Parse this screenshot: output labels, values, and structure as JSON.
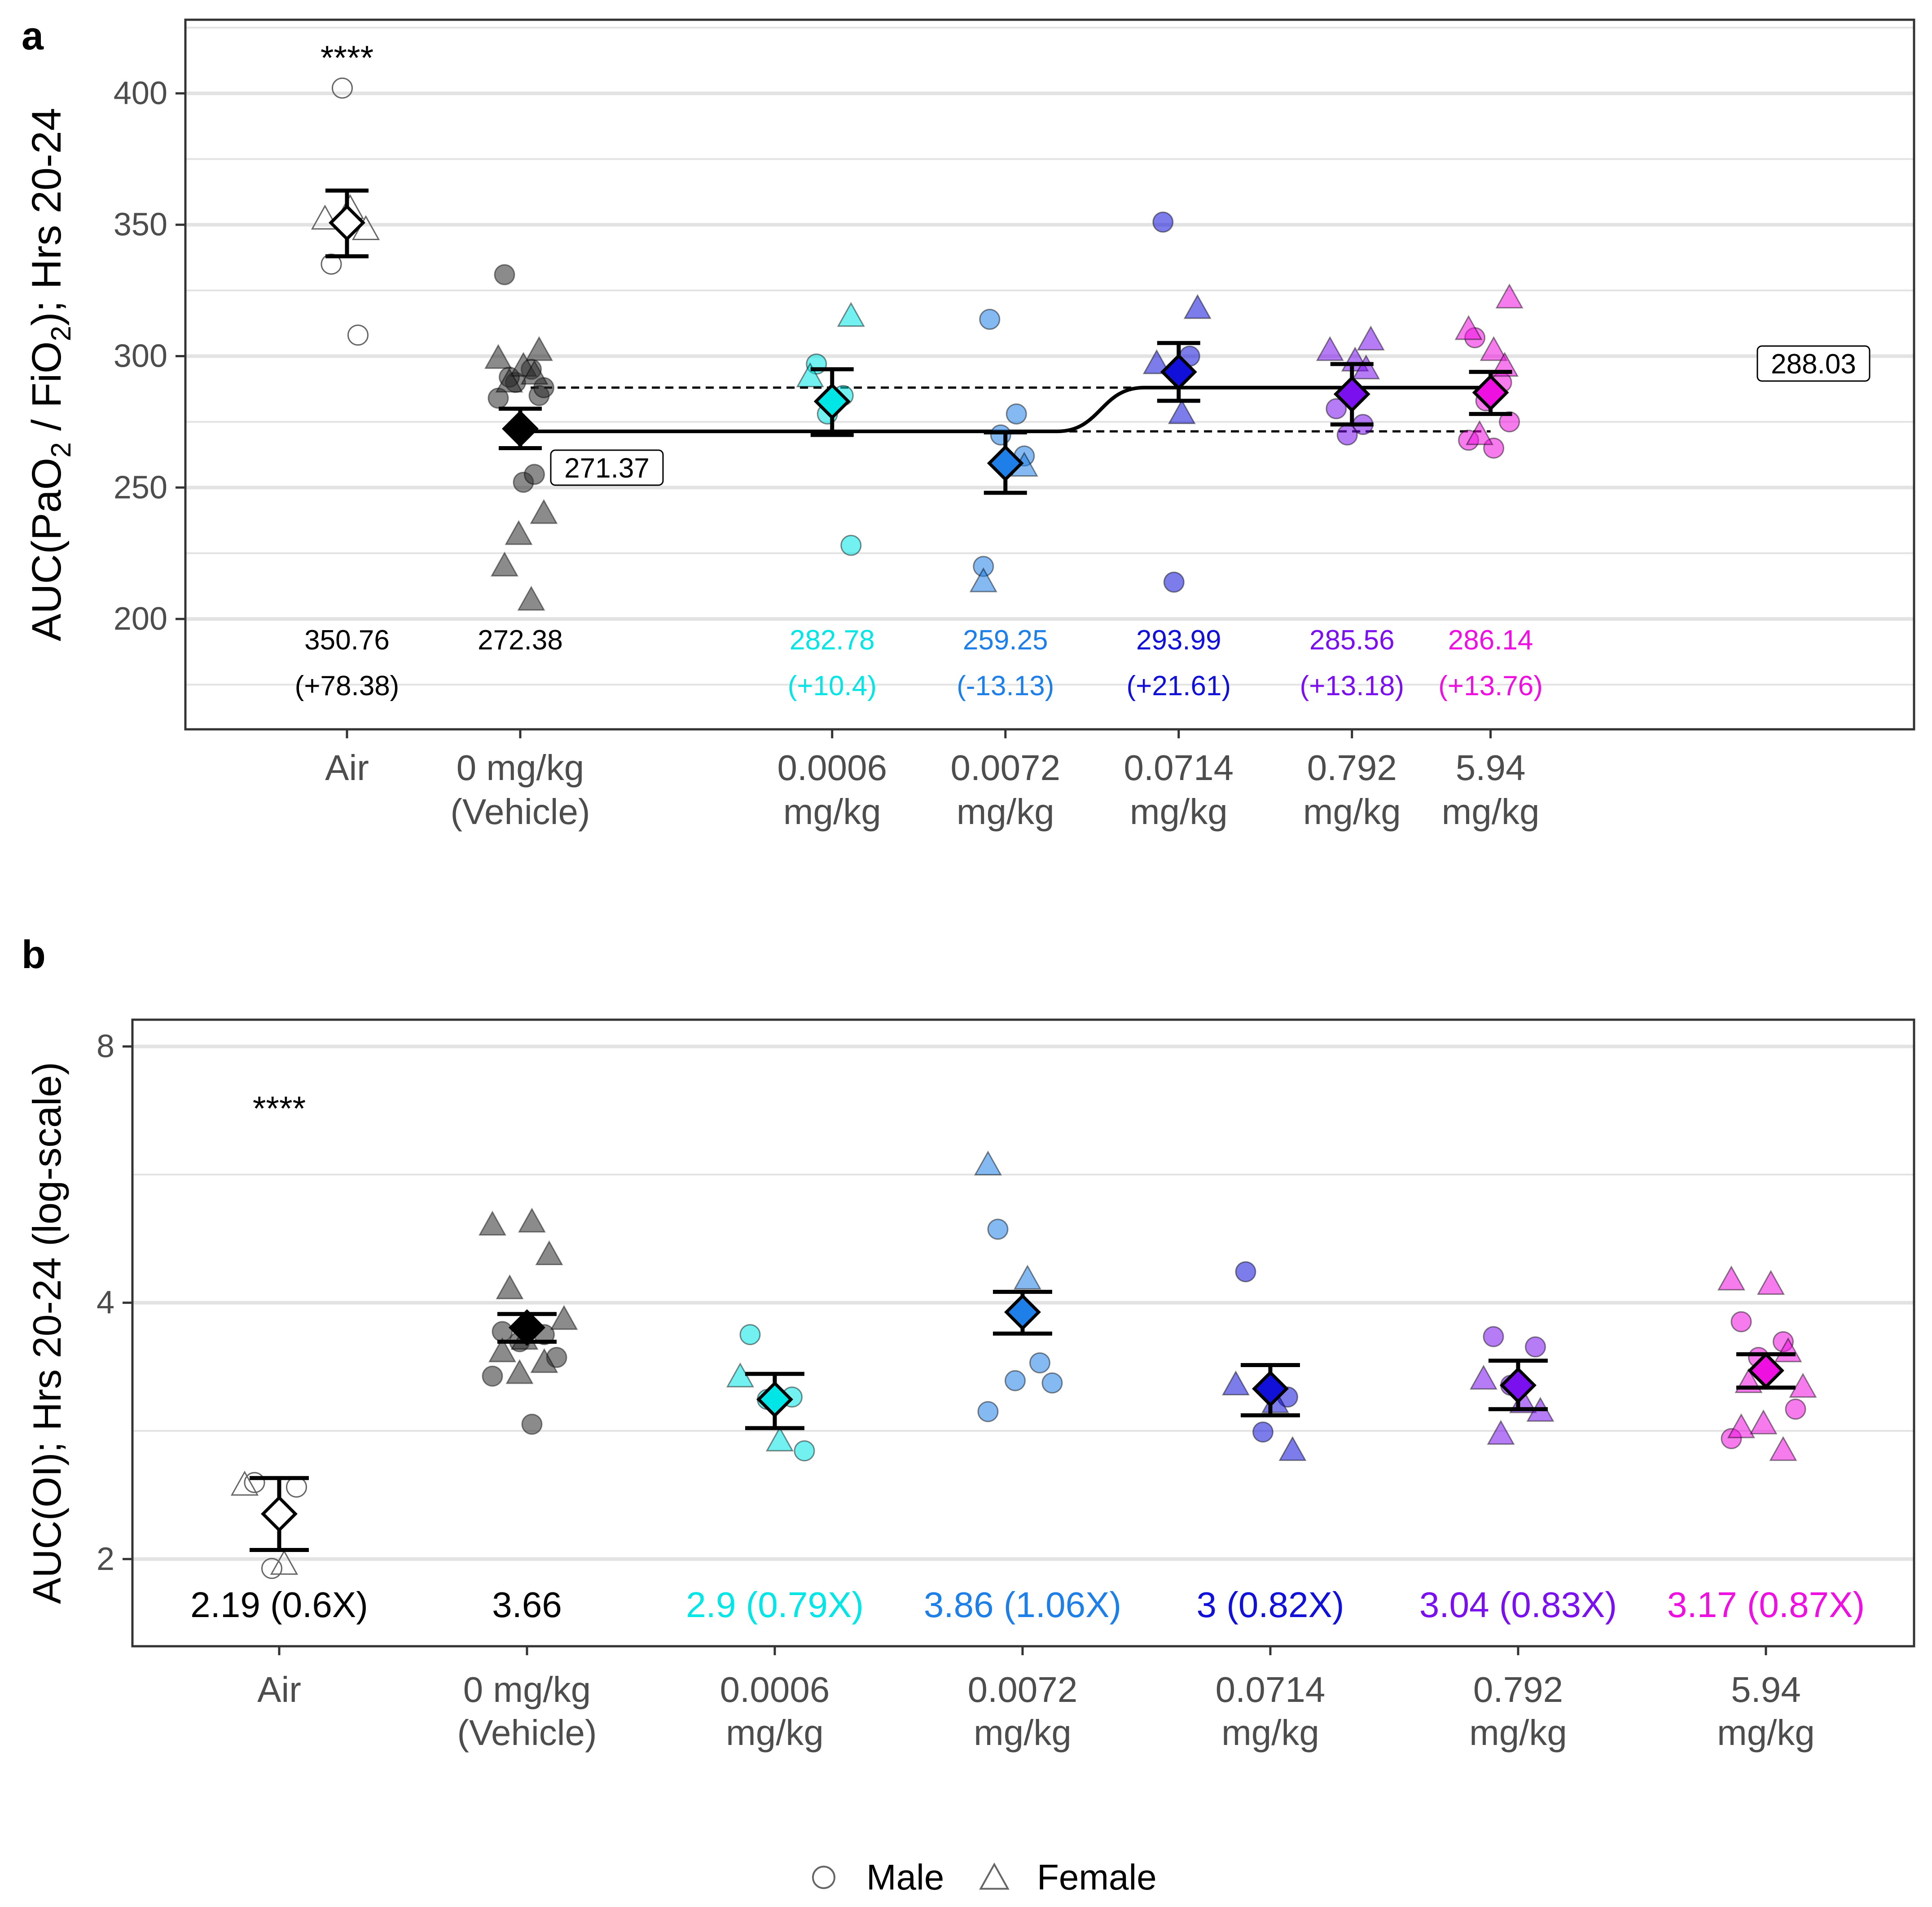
{
  "legend": {
    "items": [
      {
        "label": "Male",
        "shape": "circle"
      },
      {
        "label": "Female",
        "shape": "triangle"
      }
    ]
  },
  "colors": {
    "Air": "#ffffff",
    "Vehicle": "#2b2b2b",
    "0.0006": "#00f0f0",
    "0.0072": "#1f7fe8",
    "0.0714": "#1010d8",
    "0.792": "#7a10ee",
    "5.94": "#ee10e0"
  },
  "chart_data": [
    {
      "panel": "a",
      "type": "scatter",
      "ylabel_parts": {
        "pre": "AUC(PaO",
        "sub1": "2",
        "mid": " / FiO",
        "sub2": "2",
        "post": "); Hrs 20-24"
      },
      "ylim": [
        158,
        428
      ],
      "yticks": [
        200,
        250,
        300,
        350,
        400
      ],
      "groups": [
        {
          "key": "Air",
          "label1": "Air",
          "label2": "",
          "pos": 0,
          "mean": 350.76,
          "ci": [
            338,
            363
          ],
          "value_text": "350.76",
          "delta_text": "(+78.38)",
          "color": "#000000",
          "hollow": true,
          "male": [
            335,
            308,
            402
          ],
          "female": [
            348,
            352,
            356
          ]
        },
        {
          "key": "Vehicle",
          "label1": "0 mg/kg",
          "label2": "(Vehicle)",
          "pos": 1,
          "mean": 272.38,
          "ci": [
            265,
            280
          ],
          "value_text": "272.38",
          "delta_text": "",
          "color": "#000000",
          "hollow": false,
          "male": [
            331,
            295,
            290,
            285,
            284,
            252,
            255,
            292,
            288
          ],
          "female": [
            302,
            299,
            296,
            293,
            290,
            240,
            232,
            220,
            207
          ]
        },
        {
          "key": "0.0006",
          "label1": "0.0006",
          "label2": "mg/kg",
          "pos": 2.8,
          "mean": 282.78,
          "ci": [
            270,
            295
          ],
          "value_text": "282.78",
          "delta_text": "(+10.4)",
          "color": "#00e6e6",
          "hollow": false,
          "male": [
            297,
            285,
            278,
            228
          ],
          "female": [
            315,
            292
          ]
        },
        {
          "key": "0.0072",
          "label1": "0.0072",
          "label2": "mg/kg",
          "pos": 3.8,
          "mean": 259.25,
          "ci": [
            248,
            271
          ],
          "value_text": "259.25",
          "delta_text": "(-13.13)",
          "color": "#1f7fe8",
          "hollow": false,
          "male": [
            314,
            278,
            270,
            262,
            220
          ],
          "female": [
            258,
            214
          ]
        },
        {
          "key": "0.0714",
          "label1": "0.0714",
          "label2": "mg/kg",
          "pos": 4.8,
          "mean": 293.99,
          "ci": [
            283,
            305
          ],
          "value_text": "293.99",
          "delta_text": "(+21.61)",
          "color": "#1010d8",
          "hollow": false,
          "male": [
            351,
            300,
            214
          ],
          "female": [
            318,
            297,
            278
          ]
        },
        {
          "key": "0.792",
          "label1": "0.792",
          "label2": "mg/kg",
          "pos": 5.8,
          "mean": 285.56,
          "ci": [
            274,
            297
          ],
          "value_text": "285.56",
          "delta_text": "(+13.18)",
          "color": "#7a10ee",
          "hollow": false,
          "male": [
            280,
            274,
            270
          ],
          "female": [
            306,
            302,
            298,
            295
          ]
        },
        {
          "key": "5.94",
          "label1": "5.94",
          "label2": "mg/kg",
          "pos": 6.6,
          "mean": 286.14,
          "ci": [
            278,
            294
          ],
          "value_text": "286.14",
          "delta_text": "(+13.76)",
          "color": "#ee10e0",
          "hollow": false,
          "male": [
            307,
            290,
            283,
            275,
            268,
            265
          ],
          "female": [
            322,
            310,
            302,
            296,
            270
          ]
        }
      ],
      "model_curve": {
        "low": 271.37,
        "high": 288.03,
        "low_label": "271.37",
        "high_label": "288.03",
        "transition": [
          4.1,
          4.6
        ]
      },
      "significance": "****"
    },
    {
      "panel": "b",
      "type": "scatter",
      "scale": "log2",
      "ylabel": "AUC(OI); Hrs 20-24 (log-scale)",
      "ylim": [
        1.58,
        8.6
      ],
      "yticks": [
        2,
        4,
        8
      ],
      "minor_ticks": [
        2.8284,
        5.6569
      ],
      "groups": [
        {
          "key": "Air",
          "label1": "Air",
          "label2": "",
          "pos": 0,
          "mean": 2.26,
          "ci": [
            2.05,
            2.49
          ],
          "value_text": "2.19 (0.6X)",
          "color": "#000000",
          "hollow": true,
          "male": [
            2.46,
            2.43,
            1.95
          ],
          "female": [
            2.44,
            1.97
          ]
        },
        {
          "key": "Vehicle",
          "label1": "0 mg/kg",
          "label2": "(Vehicle)",
          "pos": 1,
          "mean": 3.74,
          "ci": [
            3.6,
            3.88
          ],
          "value_text": "3.66",
          "color": "#000000",
          "hollow": false,
          "male": [
            3.7,
            3.67,
            3.6,
            3.45,
            3.28,
            2.88
          ],
          "female": [
            4.93,
            4.97,
            4.55,
            4.15,
            3.82,
            3.62,
            3.5,
            3.4,
            3.3
          ]
        },
        {
          "key": "0.0006",
          "label1": "0.0006",
          "label2": "mg/kg",
          "pos": 2,
          "mean": 3.08,
          "ci": [
            2.85,
            3.3
          ],
          "value_text": "2.9 (0.79X)",
          "color": "#00e6e6",
          "hollow": false,
          "male": [
            3.67,
            3.1,
            3.08,
            2.68
          ],
          "female": [
            3.27,
            2.75
          ]
        },
        {
          "key": "0.0072",
          "label1": "0.0072",
          "label2": "mg/kg",
          "pos": 3,
          "mean": 3.9,
          "ci": [
            3.68,
            4.12
          ],
          "value_text": "3.86 (1.06X)",
          "color": "#1f7fe8",
          "hollow": false,
          "male": [
            4.88,
            3.4,
            3.24,
            3.22,
            2.98
          ],
          "female": [
            5.8,
            4.26
          ]
        },
        {
          "key": "0.0714",
          "label1": "0.0714",
          "label2": "mg/kg",
          "pos": 4,
          "mean": 3.17,
          "ci": [
            2.95,
            3.38
          ],
          "value_text": "3 (0.82X)",
          "color": "#1010d8",
          "hollow": false,
          "male": [
            4.35,
            3.1,
            2.82
          ],
          "female": [
            3.2,
            3.05,
            2.68
          ]
        },
        {
          "key": "0.792",
          "label1": "0.792",
          "label2": "mg/kg",
          "pos": 5,
          "mean": 3.2,
          "ci": [
            3.0,
            3.42
          ],
          "value_text": "3.04 (0.83X)",
          "color": "#7a10ee",
          "hollow": false,
          "male": [
            3.65,
            3.55,
            3.2
          ],
          "female": [
            3.25,
            3.05,
            2.98,
            2.8
          ]
        },
        {
          "key": "5.94",
          "label1": "5.94",
          "label2": "mg/kg",
          "pos": 6,
          "mean": 3.33,
          "ci": [
            3.18,
            3.48
          ],
          "value_text": "3.17 (0.87X)",
          "color": "#ee10e0",
          "hollow": false,
          "male": [
            3.8,
            3.6,
            3.45,
            3.0,
            2.77
          ],
          "female": [
            4.25,
            4.2,
            3.5,
            3.22,
            3.18,
            2.88,
            2.85,
            2.68
          ]
        }
      ],
      "significance": "****"
    }
  ]
}
